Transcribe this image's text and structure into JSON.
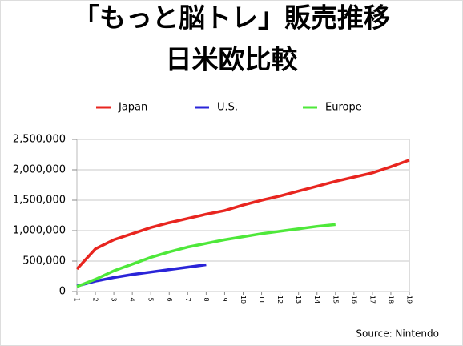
{
  "chart_data": {
    "type": "line",
    "title": [
      "「もっと脳トレ」販売推移",
      "日米欧比較"
    ],
    "annotation": "Source: Nintendo",
    "x": [
      1,
      2,
      3,
      4,
      5,
      6,
      7,
      8,
      9,
      10,
      11,
      12,
      13,
      14,
      15,
      16,
      17,
      18,
      19
    ],
    "xlim": [
      1,
      19
    ],
    "xticks": [
      1,
      2,
      3,
      4,
      5,
      6,
      7,
      8,
      9,
      10,
      11,
      12,
      13,
      14,
      15,
      16,
      17,
      18,
      19
    ],
    "ylim": [
      0,
      2500000
    ],
    "yticks": [
      0,
      {
        "value": 500000,
        "label": "500,000"
      },
      {
        "value": 1000000,
        "label": "1,000,000"
      },
      {
        "value": 1500000,
        "label": "1,500,000"
      },
      {
        "value": 2000000,
        "label": "2,000,000"
      },
      {
        "value": 2500000,
        "label": "2,500,000"
      }
    ],
    "grid": true,
    "legend": "top",
    "series": [
      {
        "name": "Japan",
        "color": "#e8251f",
        "values": [
          370000,
          700000,
          850000,
          950000,
          1050000,
          1130000,
          1200000,
          1270000,
          1330000,
          1420000,
          1500000,
          1570000,
          1650000,
          1730000,
          1810000,
          1880000,
          1950000,
          2050000,
          2160000
        ]
      },
      {
        "name": "U.S.",
        "color": "#2a24d8",
        "values": [
          90000,
          170000,
          230000,
          280000,
          320000,
          360000,
          400000,
          440000,
          null,
          null,
          null,
          null,
          null,
          null,
          null,
          null,
          null,
          null,
          null
        ]
      },
      {
        "name": "Europe",
        "color": "#4ee83a",
        "values": [
          80000,
          200000,
          340000,
          450000,
          560000,
          650000,
          730000,
          790000,
          850000,
          900000,
          950000,
          990000,
          1030000,
          1070000,
          1100000,
          null,
          null,
          null,
          null
        ]
      }
    ]
  }
}
